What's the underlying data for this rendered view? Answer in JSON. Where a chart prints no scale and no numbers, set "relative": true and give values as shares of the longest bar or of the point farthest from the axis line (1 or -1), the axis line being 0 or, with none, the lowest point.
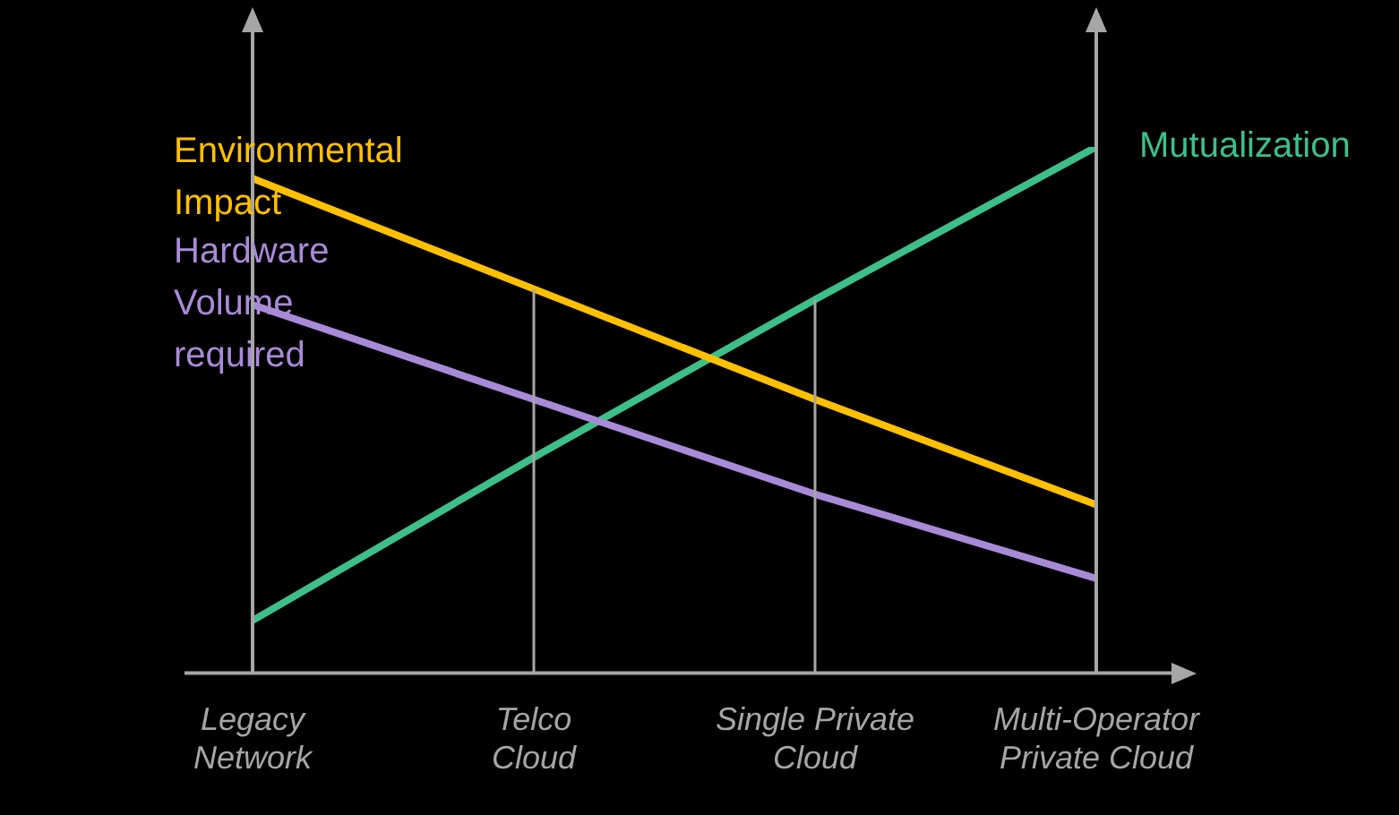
{
  "chart_data": {
    "type": "line",
    "relative": true,
    "categories": [
      "Legacy Network",
      "Telco Cloud",
      "Single Private Cloud",
      "Multi-Operator Private Cloud"
    ],
    "series": [
      {
        "name": "Environmental Impact",
        "color": "#ffc000",
        "values": [
          0.94,
          0.73,
          0.52,
          0.32
        ]
      },
      {
        "name": "Hardware Volume required",
        "color": "#a98ad8",
        "values": [
          0.7,
          0.52,
          0.34,
          0.18
        ]
      },
      {
        "name": "Mutualization",
        "color": "#3dbf8a",
        "values": [
          0.1,
          0.41,
          0.71,
          1
        ]
      }
    ],
    "tick_labels": "x",
    "grid": "x",
    "legend": false
  }
}
